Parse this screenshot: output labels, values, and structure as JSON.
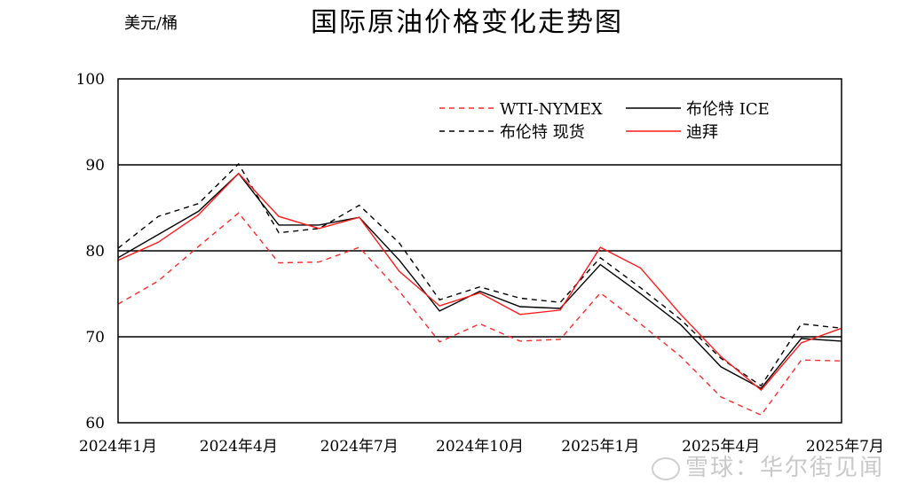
{
  "chart_data": {
    "type": "line",
    "title": "国际原油价格变化走势图",
    "ylabel": "美元/桶",
    "ylim": [
      60,
      100
    ],
    "yticks": [
      60,
      70,
      80,
      90,
      100
    ],
    "gridlines_y": [
      70,
      80,
      90
    ],
    "x_tick_labels": [
      "2024年1月",
      "2024年4月",
      "2024年7月",
      "2024年10月",
      "2025年1月",
      "2025年4月",
      "2025年7月"
    ],
    "x_tick_index": [
      0,
      3,
      6,
      9,
      12,
      15,
      18
    ],
    "x_count": 19,
    "legend_position": "top-right",
    "series": [
      {
        "name": "WTI-NYMEX",
        "color": "#ff2a2a",
        "dash": "6,5",
        "values": [
          73.8,
          76.5,
          80.5,
          84.4,
          78.6,
          78.7,
          80.4,
          75.3,
          69.4,
          71.5,
          69.5,
          69.7,
          75.1,
          71.5,
          67.7,
          63.0,
          60.9,
          67.3,
          67.2
        ]
      },
      {
        "name": "布伦特 ICE",
        "color": "#000000",
        "dash": "",
        "values": [
          79.2,
          81.9,
          84.6,
          89.0,
          83.0,
          83.0,
          83.9,
          78.9,
          73.0,
          75.3,
          73.5,
          73.3,
          78.4,
          75.0,
          71.4,
          66.5,
          64.0,
          69.8,
          69.5
        ]
      },
      {
        "name": "布伦特 现货",
        "color": "#000000",
        "dash": "6,5",
        "values": [
          80.3,
          84.0,
          85.5,
          90.1,
          82.1,
          82.6,
          85.3,
          80.9,
          74.3,
          75.8,
          74.5,
          74.0,
          79.2,
          75.7,
          72.0,
          67.5,
          64.3,
          71.5,
          71.0
        ]
      },
      {
        "name": "迪拜",
        "color": "#ff1a1a",
        "dash": "",
        "values": [
          78.9,
          81.0,
          84.2,
          89.0,
          84.0,
          82.6,
          83.9,
          77.6,
          73.6,
          75.1,
          72.6,
          73.1,
          80.4,
          78.0,
          72.6,
          67.7,
          63.8,
          69.3,
          71.0
        ]
      }
    ]
  },
  "watermark": "雪球：华尔街见闻"
}
